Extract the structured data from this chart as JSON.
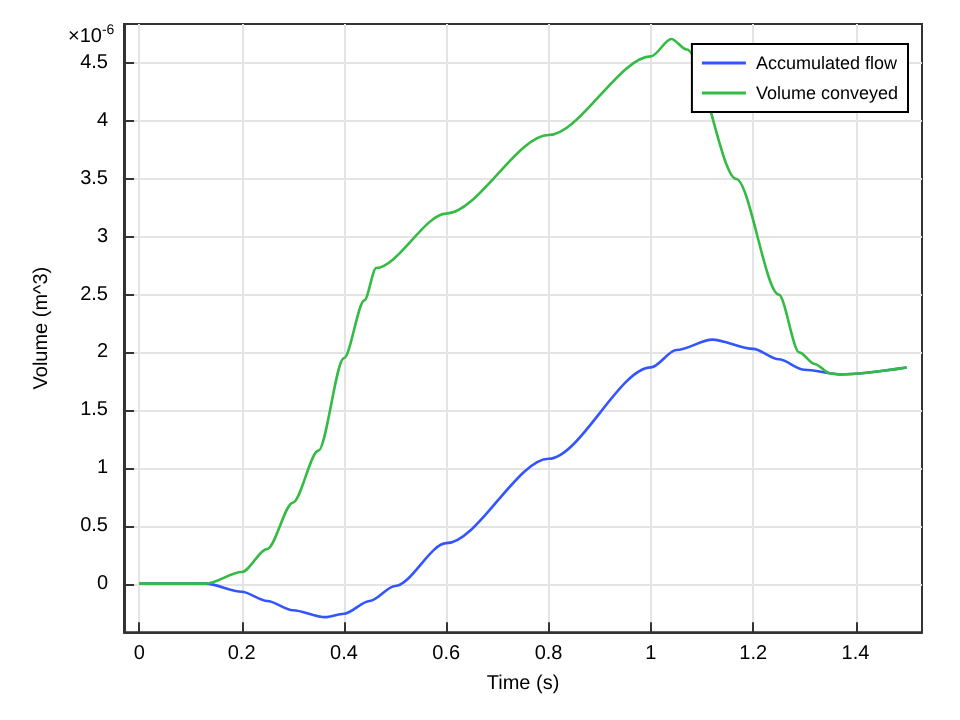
{
  "chart_data": {
    "type": "line",
    "xlabel": "Time (s)",
    "ylabel": "Volume (m^3)",
    "annotations": [
      "×10$^{-6}$"
    ],
    "xlim": [
      -0.03,
      1.53
    ],
    "xticks": [
      0,
      0.2,
      0.4,
      0.6,
      0.8,
      1,
      1.2,
      1.4
    ],
    "ylim": [
      -0.42,
      4.84
    ],
    "yticks": [
      0,
      0.5,
      1,
      1.5,
      2,
      2.5,
      3,
      3.5,
      4,
      4.5
    ],
    "grid": true,
    "legend": "top right",
    "marker": "none",
    "line_style": "solid",
    "series": [
      {
        "name": "Accumulated flow",
        "color": "#3355ff",
        "x": [
          0,
          0.13,
          0.2,
          0.25,
          0.3,
          0.363,
          0.4,
          0.45,
          0.5,
          0.6,
          0.8,
          1.0,
          1.05,
          1.12,
          1.2,
          1.25,
          1.3,
          1.37,
          1.5
        ],
        "values": [
          0,
          0,
          -0.07,
          -0.15,
          -0.23,
          -0.29,
          -0.26,
          -0.15,
          -0.02,
          0.35,
          1.08,
          1.87,
          2.02,
          2.11,
          2.03,
          1.94,
          1.85,
          1.81,
          1.87
        ]
      },
      {
        "name": "Volume conveyed",
        "color": "#33bb44",
        "x": [
          0,
          0.13,
          0.2,
          0.25,
          0.3,
          0.35,
          0.4,
          0.44,
          0.463,
          0.6,
          0.8,
          1.0,
          1.04,
          1.07,
          1.167,
          1.25,
          1.29,
          1.32,
          1.35,
          1.37,
          1.5
        ],
        "values": [
          0,
          0,
          0.1,
          0.3,
          0.7,
          1.15,
          1.95,
          2.45,
          2.73,
          3.2,
          3.88,
          4.56,
          4.71,
          4.62,
          3.5,
          2.5,
          2.0,
          1.9,
          1.82,
          1.81,
          1.87
        ]
      }
    ]
  }
}
